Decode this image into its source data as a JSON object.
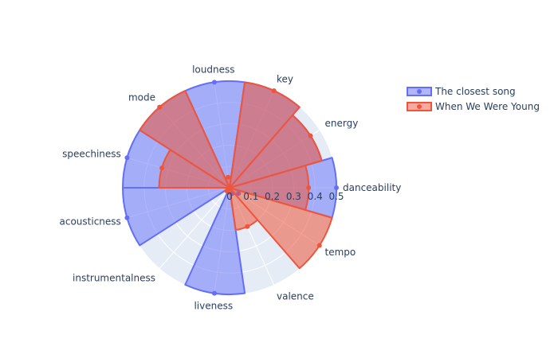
{
  "chart_data": {
    "type": "polar-bar-radar",
    "title": "",
    "radial_range": [
      0,
      0.5
    ],
    "radial_ticks": [
      "0",
      "0.1",
      "0.2",
      "0.3",
      "0.4",
      "0.5"
    ],
    "categories": [
      "danceability",
      "energy",
      "key",
      "loudness",
      "mode",
      "speechiness",
      "acousticness",
      "instrumentalness",
      "liveness",
      "valence",
      "tempo"
    ],
    "series": [
      {
        "name": "The closest song",
        "color": "#636efa",
        "values": [
          0.5,
          0.45,
          0.5,
          0.5,
          0.55,
          0.5,
          0.5,
          0.0,
          0.5,
          0.03,
          0.05
        ]
      },
      {
        "name": "When We Were Young",
        "color": "#ef553b",
        "values": [
          0.37,
          0.45,
          0.5,
          0.05,
          0.55,
          0.33,
          0.0,
          0.02,
          0.02,
          0.2,
          0.5
        ]
      }
    ],
    "legend_position": "top-right"
  }
}
